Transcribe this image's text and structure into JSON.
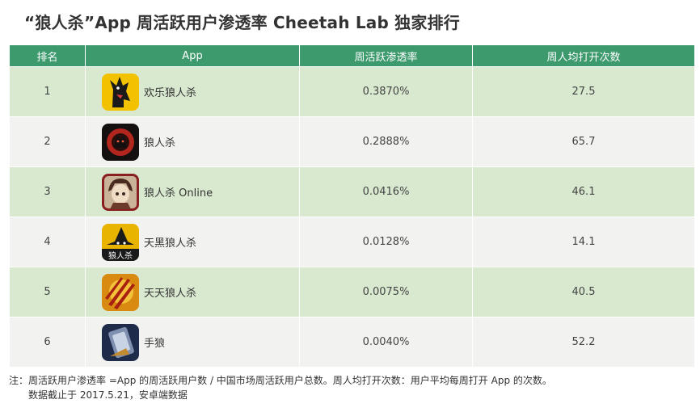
{
  "title": "“狼人杀”App 周活跃用户渗透率 Cheetah Lab 独家排行",
  "table": {
    "headers": {
      "rank": "排名",
      "app": "App",
      "penetration": "周活跃渗透率",
      "opens": "周人均打开次数"
    },
    "rows": [
      {
        "rank": "1",
        "name": "欢乐狼人杀",
        "icon": "wolf-howl-icon",
        "penetration": "0.3870%",
        "opens": "27.5"
      },
      {
        "rank": "2",
        "name": "狼人杀",
        "icon": "red-moon-wolf-icon",
        "penetration": "0.2888%",
        "opens": "65.7"
      },
      {
        "rank": "3",
        "name": "狼人杀 Online",
        "icon": "character-avatar-icon",
        "penetration": "0.0416%",
        "opens": "46.1"
      },
      {
        "rank": "4",
        "name": "天黑狼人杀",
        "icon": "witch-hat-icon",
        "penetration": "0.0128%",
        "opens": "14.1"
      },
      {
        "rank": "5",
        "name": "天天狼人杀",
        "icon": "claw-scratch-icon",
        "penetration": "0.0075%",
        "opens": "40.5"
      },
      {
        "rank": "6",
        "name": "手狼",
        "icon": "card-icon",
        "penetration": "0.0040%",
        "opens": "52.2"
      }
    ]
  },
  "icon_texts": {
    "row4": "狼人杀"
  },
  "note": {
    "line1": "注：周活跃用户渗透率 =App 的周活跃用户数 / 中国市场周活跃用户总数。周人均打开次数：用户平均每周打开 App 的次数。",
    "line2": "数据截止于 2017.5.21，安卓端数据"
  },
  "colors": {
    "header_bg": "#3d9a6d",
    "row_green": "#d8e9cf",
    "row_grey": "#f2f2f0"
  }
}
